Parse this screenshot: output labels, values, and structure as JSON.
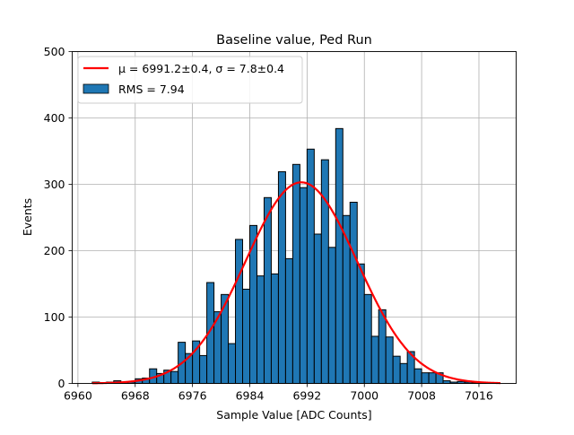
{
  "chart_data": {
    "type": "bar",
    "title": "Baseline value, Ped Run",
    "xlabel": "Sample Value [ADC Counts]",
    "ylabel": "Events",
    "xlim": [
      6959.2,
      7021.2
    ],
    "ylim": [
      0,
      500
    ],
    "grid": true,
    "legend_placement": "top-left",
    "xticks": [
      6960,
      6968,
      6976,
      6984,
      6992,
      7000,
      7008,
      7016
    ],
    "xtick_labels": [
      "6960",
      "6968",
      "6976",
      "6984",
      "6992",
      "7000",
      "7008",
      "7016"
    ],
    "yticks": [
      0,
      100,
      200,
      300,
      400,
      500
    ],
    "ytick_labels": [
      "0",
      "100",
      "200",
      "300",
      "400",
      "500"
    ],
    "bin_width": 1,
    "bin_start": 6962,
    "histogram": [
      2,
      1,
      2,
      4,
      2,
      2,
      7,
      8,
      22,
      15,
      20,
      18,
      62,
      45,
      64,
      42,
      152,
      108,
      134,
      60,
      217,
      142,
      238,
      162,
      280,
      165,
      319,
      188,
      330,
      295,
      353,
      225,
      337,
      205,
      384,
      253,
      273,
      180,
      134,
      71,
      111,
      70,
      41,
      30,
      48,
      22,
      16,
      16,
      16,
      4,
      2,
      3,
      2,
      1,
      1
    ],
    "histogram_label": "RMS = 7.94",
    "fit": {
      "label_mu": "μ = 6991.2±0.4, ",
      "label_sigma": "σ = 7.8±0.4",
      "mu": 6991.2,
      "sigma": 7.8,
      "amplitude": 303,
      "x_range": [
        6962,
        7019
      ],
      "color": "#ff0000"
    },
    "bar_color": "#1f77b4",
    "bar_edge_color": "#000000"
  }
}
